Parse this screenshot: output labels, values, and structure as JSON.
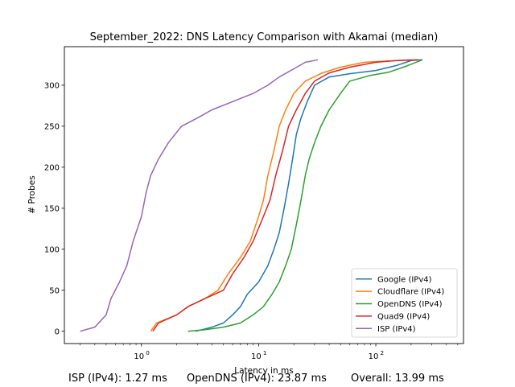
{
  "chart_data": {
    "type": "line",
    "title": "September_2022: DNS Latency Comparison with Akamai (median)",
    "xlabel": "Latency in ms",
    "ylabel": "# Probes",
    "xscale": "log",
    "xlim": [
      0.22,
      560
    ],
    "ylim": [
      -15,
      347
    ],
    "xticks": [
      {
        "value": 1,
        "label": "10^0"
      },
      {
        "value": 10,
        "label": "10^1"
      },
      {
        "value": 100,
        "label": "10^2"
      }
    ],
    "yticks": [
      0,
      50,
      100,
      150,
      200,
      250,
      300
    ],
    "legend_position": "lower-right",
    "grid": false,
    "series": [
      {
        "name": "Google (IPv4)",
        "color": "#1f77b4",
        "points": [
          [
            2.9,
            0
          ],
          [
            3.3,
            2
          ],
          [
            4.0,
            5
          ],
          [
            5.0,
            10
          ],
          [
            6.0,
            20
          ],
          [
            7.0,
            30
          ],
          [
            8.0,
            45
          ],
          [
            10.0,
            60
          ],
          [
            12.0,
            80
          ],
          [
            13.5,
            100
          ],
          [
            15.0,
            120
          ],
          [
            16.5,
            150
          ],
          [
            18.0,
            180
          ],
          [
            19.5,
            210
          ],
          [
            21.0,
            240
          ],
          [
            23.0,
            260
          ],
          [
            26.0,
            280
          ],
          [
            30.0,
            300
          ],
          [
            40.0,
            310
          ],
          [
            60.0,
            314
          ],
          [
            100.0,
            318
          ],
          [
            150.0,
            324
          ],
          [
            200.0,
            330
          ],
          [
            250.0,
            331
          ]
        ]
      },
      {
        "name": "Cloudflare (IPv4)",
        "color": "#ff7f0e",
        "points": [
          [
            1.2,
            0
          ],
          [
            1.35,
            10
          ],
          [
            2.0,
            20
          ],
          [
            2.5,
            30
          ],
          [
            3.5,
            40
          ],
          [
            4.5,
            50
          ],
          [
            5.5,
            70
          ],
          [
            7.0,
            90
          ],
          [
            8.5,
            110
          ],
          [
            10.0,
            140
          ],
          [
            11.0,
            160
          ],
          [
            12.0,
            190
          ],
          [
            13.5,
            220
          ],
          [
            15.0,
            250
          ],
          [
            17.0,
            270
          ],
          [
            20.0,
            290
          ],
          [
            25.0,
            305
          ],
          [
            35.0,
            315
          ],
          [
            50.0,
            322
          ],
          [
            80.0,
            328
          ],
          [
            150.0,
            330
          ],
          [
            200.0,
            331
          ]
        ]
      },
      {
        "name": "OpenDNS (IPv4)",
        "color": "#2ca02c",
        "points": [
          [
            2.5,
            0
          ],
          [
            3.5,
            2
          ],
          [
            5.0,
            5
          ],
          [
            7.0,
            10
          ],
          [
            9.0,
            20
          ],
          [
            11.0,
            30
          ],
          [
            13.0,
            45
          ],
          [
            15.0,
            60
          ],
          [
            17.0,
            80
          ],
          [
            19.0,
            100
          ],
          [
            21.0,
            130
          ],
          [
            23.0,
            160
          ],
          [
            25.0,
            190
          ],
          [
            27.0,
            210
          ],
          [
            30.0,
            230
          ],
          [
            34.0,
            250
          ],
          [
            40.0,
            270
          ],
          [
            50.0,
            290
          ],
          [
            60.0,
            305
          ],
          [
            90.0,
            312
          ],
          [
            130.0,
            316
          ],
          [
            180.0,
            323
          ],
          [
            250.0,
            331
          ]
        ]
      },
      {
        "name": "Quad9 (IPv4)",
        "color": "#d62728",
        "points": [
          [
            1.25,
            0
          ],
          [
            1.4,
            10
          ],
          [
            2.0,
            20
          ],
          [
            2.5,
            30
          ],
          [
            3.5,
            40
          ],
          [
            5.0,
            50
          ],
          [
            6.0,
            70
          ],
          [
            7.5,
            90
          ],
          [
            9.0,
            110
          ],
          [
            11.0,
            140
          ],
          [
            12.5,
            160
          ],
          [
            14.0,
            190
          ],
          [
            16.0,
            220
          ],
          [
            18.0,
            250
          ],
          [
            21.0,
            270
          ],
          [
            25.0,
            290
          ],
          [
            30.0,
            305
          ],
          [
            40.0,
            315
          ],
          [
            60.0,
            322
          ],
          [
            100.0,
            328
          ],
          [
            150.0,
            330
          ],
          [
            230.0,
            331
          ]
        ]
      },
      {
        "name": "ISP (IPv4)",
        "color": "#9467bd",
        "points": [
          [
            0.3,
            0
          ],
          [
            0.4,
            5
          ],
          [
            0.5,
            20
          ],
          [
            0.55,
            40
          ],
          [
            0.65,
            60
          ],
          [
            0.75,
            80
          ],
          [
            0.85,
            110
          ],
          [
            1.0,
            140
          ],
          [
            1.1,
            170
          ],
          [
            1.2,
            190
          ],
          [
            1.4,
            210
          ],
          [
            1.7,
            230
          ],
          [
            2.2,
            250
          ],
          [
            3.0,
            260
          ],
          [
            4.0,
            270
          ],
          [
            6.0,
            280
          ],
          [
            9.0,
            290
          ],
          [
            12.0,
            300
          ],
          [
            15.0,
            310
          ],
          [
            20.0,
            320
          ],
          [
            25.0,
            328
          ],
          [
            32.0,
            331
          ]
        ]
      }
    ]
  },
  "footer": {
    "isp": "ISP (IPv4): 1.27 ms",
    "opendns": "OpenDNS (IPv4): 23.87 ms",
    "overall": "Overall: 13.99 ms"
  }
}
